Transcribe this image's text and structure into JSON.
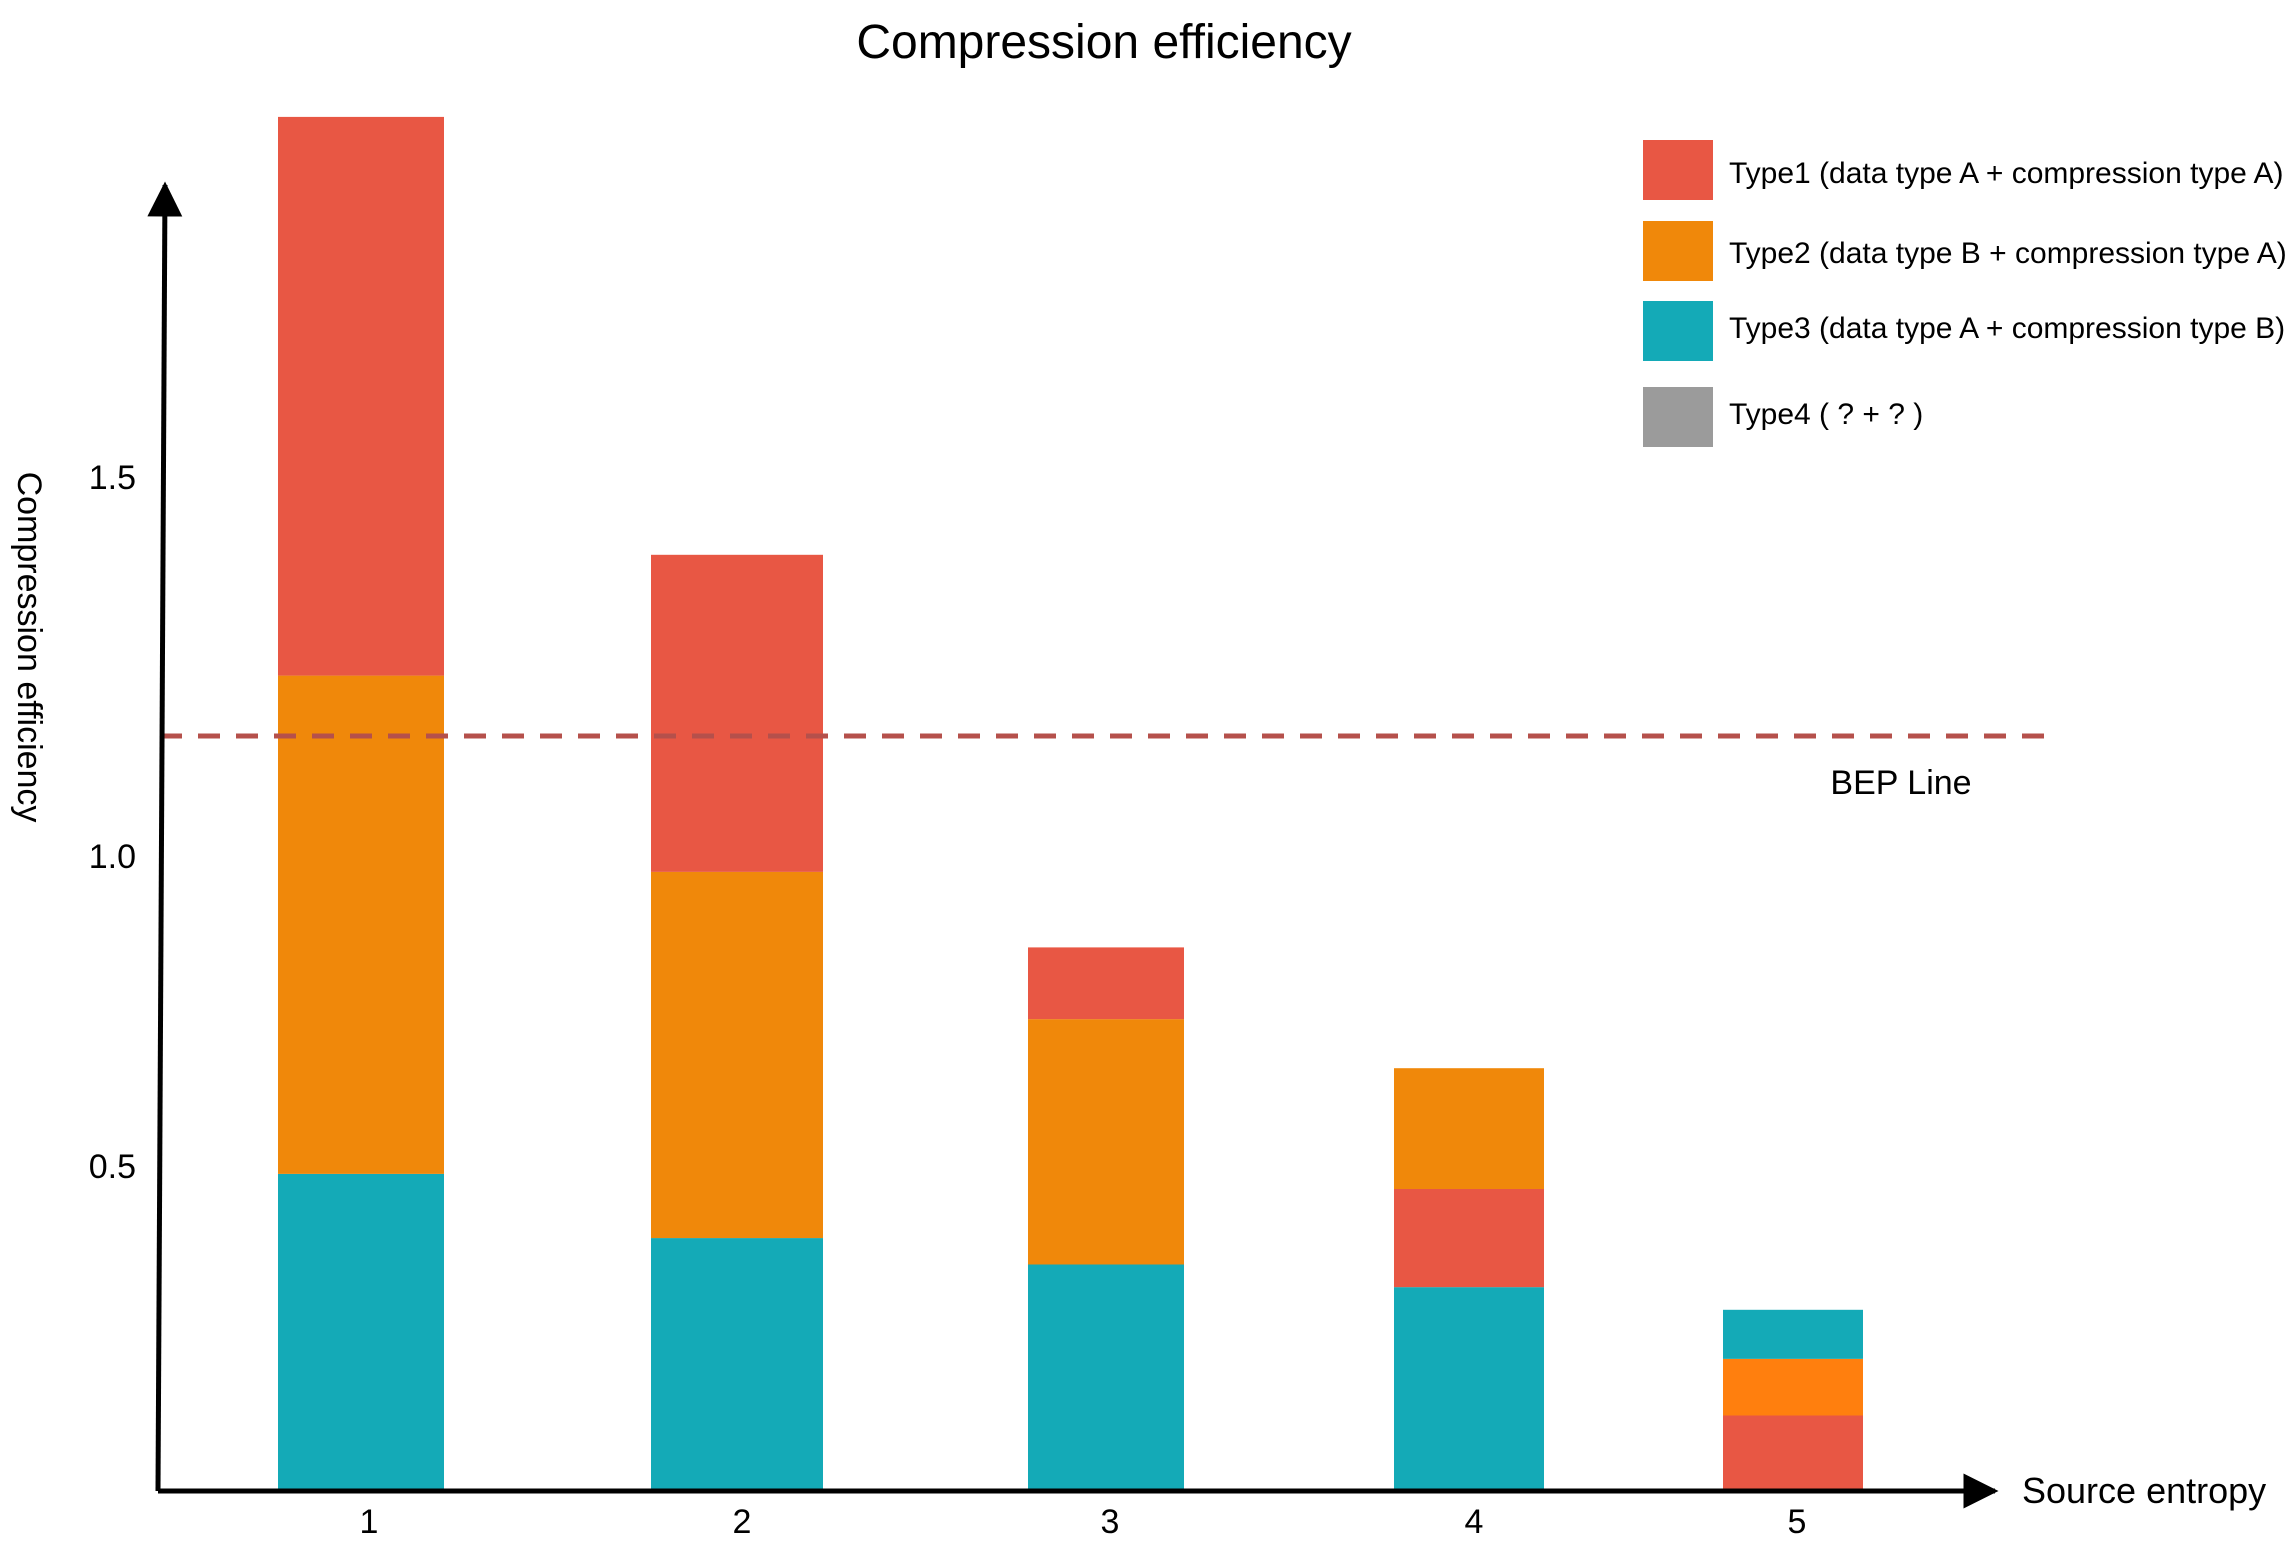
{
  "chart_data": {
    "type": "bar",
    "stacked": true,
    "title": "Compression efficiency",
    "xlabel": "Source entropy",
    "ylabel": "Compression efficiency",
    "categories": [
      "1",
      "2",
      "3",
      "4",
      "5"
    ],
    "yticks": [
      "0.5",
      "1.0",
      "1.5"
    ],
    "ylim": [
      0,
      1.85
    ],
    "grid": false,
    "legend_position": "top-right",
    "legend": [
      {
        "name": "Type1 (data type A + compression type A)",
        "color": "#e85744"
      },
      {
        "name": "Type2 (data type B + compression type A)",
        "color": "#f0880a"
      },
      {
        "name": "Type3 (data type A + compression type B)",
        "color": "#14aab7"
      },
      {
        "name": "Type4 ( ? + ? )",
        "color": "#9b9b9b"
      }
    ],
    "stacks": [
      [
        {
          "series": "Type3",
          "value": 0.42,
          "color": "#14aab7"
        },
        {
          "series": "Type2",
          "value": 0.66,
          "color": "#f0880a"
        },
        {
          "series": "Type1",
          "value": 0.74,
          "color": "#e85744"
        }
      ],
      [
        {
          "series": "Type3",
          "value": 0.335,
          "color": "#14aab7"
        },
        {
          "series": "Type2",
          "value": 0.485,
          "color": "#f0880a"
        },
        {
          "series": "Type1",
          "value": 0.42,
          "color": "#e85744"
        }
      ],
      [
        {
          "series": "Type3",
          "value": 0.3,
          "color": "#14aab7"
        },
        {
          "series": "Type2",
          "value": 0.325,
          "color": "#f0880a"
        },
        {
          "series": "Type1",
          "value": 0.095,
          "color": "#e85744"
        }
      ],
      [
        {
          "series": "Type3",
          "value": 0.27,
          "color": "#14aab7"
        },
        {
          "series": "Type1",
          "value": 0.13,
          "color": "#e85744"
        },
        {
          "series": "Type2",
          "value": 0.16,
          "color": "#f0880a"
        }
      ],
      [
        {
          "series": "Type1",
          "value": 0.1,
          "color": "#e85744"
        },
        {
          "series": "Type2",
          "value": 0.075,
          "color": "#ff7f0e"
        },
        {
          "series": "Type3",
          "value": 0.065,
          "color": "#14aab7"
        }
      ]
    ],
    "reference_line": {
      "label": "BEP Line",
      "value": 1.0,
      "color": "#b5504b",
      "style": "dashed"
    }
  }
}
